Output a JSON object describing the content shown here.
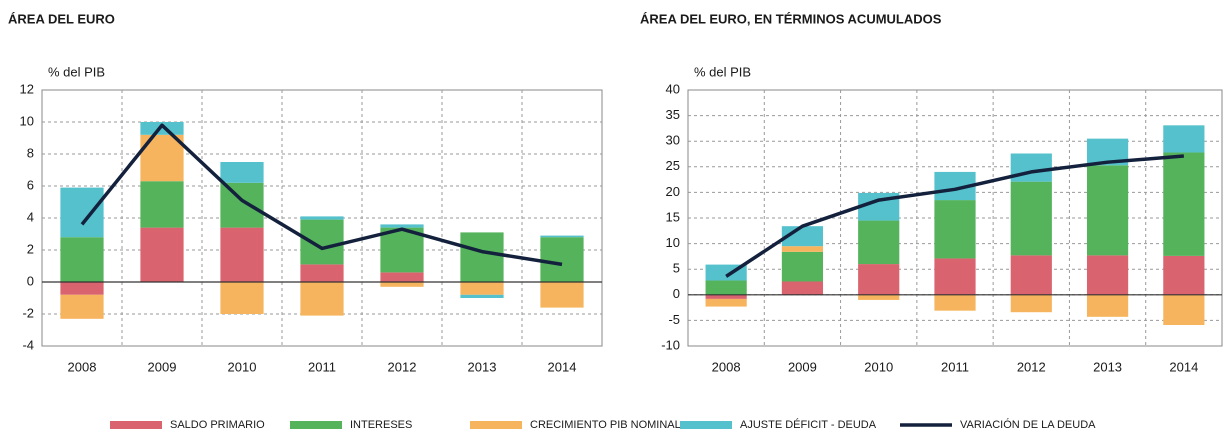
{
  "chart_data": [
    {
      "type": "bar",
      "stacked": true,
      "title": "ÁREA DEL EURO",
      "ylabel": "% del PIB",
      "categories": [
        "2008",
        "2009",
        "2010",
        "2011",
        "2012",
        "2013",
        "2014"
      ],
      "ylim": [
        -4,
        12
      ],
      "yticks": [
        -4,
        -2,
        0,
        2,
        4,
        6,
        8,
        10,
        12
      ],
      "grid": true,
      "series": [
        {
          "name": "SALDO PRIMARIO",
          "color": "#d9636f",
          "values": [
            -0.8,
            3.4,
            3.4,
            1.1,
            0.6,
            0,
            0
          ]
        },
        {
          "name": "INTERESES",
          "color": "#55b35c",
          "values": [
            2.8,
            2.9,
            2.8,
            2.8,
            2.8,
            3.1,
            2.8
          ]
        },
        {
          "name": "CRECIMIENTO PIB NOMINAL",
          "color": "#f6b45e",
          "values": [
            -1.5,
            2.9,
            -2.0,
            -2.1,
            -0.3,
            -0.8,
            -1.6
          ]
        },
        {
          "name": "AJUSTE DÉFICIT - DEUDA",
          "color": "#55c1cc",
          "values": [
            3.1,
            0.8,
            1.3,
            0.2,
            0.2,
            -0.2,
            0.1
          ]
        },
        {
          "name": "VARIACIÓN DE LA DEUDA",
          "color": "#14213d",
          "type": "line",
          "values": [
            3.6,
            9.8,
            5.1,
            2.1,
            3.3,
            1.9,
            1.1
          ]
        }
      ]
    },
    {
      "type": "bar",
      "stacked": true,
      "title": "ÁREA DEL EURO, EN TÉRMINOS ACUMULADOS",
      "ylabel": "% del PIB",
      "categories": [
        "2008",
        "2009",
        "2010",
        "2011",
        "2012",
        "2013",
        "2014"
      ],
      "ylim": [
        -10,
        40
      ],
      "yticks": [
        -10,
        -5,
        0,
        5,
        10,
        15,
        20,
        25,
        30,
        35,
        40
      ],
      "grid": true,
      "series": [
        {
          "name": "SALDO PRIMARIO",
          "color": "#d9636f",
          "values": [
            -0.8,
            2.6,
            6.0,
            7.1,
            7.7,
            7.7,
            7.6
          ]
        },
        {
          "name": "INTERESES",
          "color": "#55b35c",
          "values": [
            2.8,
            5.8,
            8.5,
            11.4,
            14.4,
            17.6,
            20.2
          ]
        },
        {
          "name": "CRECIMIENTO PIB NOMINAL",
          "color": "#f6b45e",
          "values": [
            -1.5,
            1.1,
            -1.0,
            -3.1,
            -3.4,
            -4.3,
            -5.9
          ]
        },
        {
          "name": "AJUSTE DÉFICIT - DEUDA",
          "color": "#55c1cc",
          "values": [
            3.1,
            3.9,
            5.4,
            5.5,
            5.5,
            5.2,
            5.3
          ]
        },
        {
          "name": "VARIACIÓN DE LA DEUDA",
          "color": "#14213d",
          "type": "line",
          "values": [
            3.6,
            13.4,
            18.5,
            20.6,
            24.0,
            25.9,
            27.1
          ]
        }
      ]
    }
  ]
}
